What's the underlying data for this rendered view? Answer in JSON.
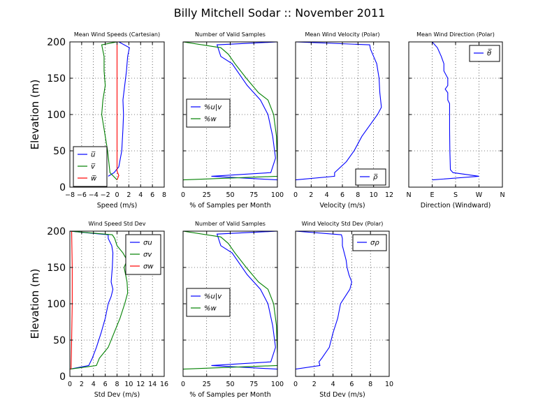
{
  "figure_title": "Billy Mitchell Sodar :: November 2011",
  "colors": {
    "blue": "#0000ff",
    "green": "#008000",
    "red": "#ff0000",
    "axis": "#000000"
  },
  "chart_data": [
    {
      "id": "p1",
      "type": "line",
      "title": "Mean Wind Speeds (Cartesian)",
      "xlabel": "Speed (m/s)",
      "ylabel": "Elevation (m)",
      "xlim": [
        -8,
        8
      ],
      "ylim": [
        0,
        200
      ],
      "xticks": [
        -8,
        -6,
        -4,
        -2,
        0,
        2,
        4,
        6,
        8
      ],
      "xticklabels": [
        "−8",
        "−6",
        "−4",
        "−2",
        "0",
        "2",
        "4",
        "6",
        "8"
      ],
      "yticks": [
        0,
        50,
        100,
        150,
        200
      ],
      "yticklabels": [
        "0",
        "50",
        "100",
        "150",
        "200"
      ],
      "grid": true,
      "legend": "lower-left",
      "series": [
        {
          "name": "u̅",
          "color": "#0000ff",
          "points": [
            [
              -1.5,
              15
            ],
            [
              -0.5,
              20
            ],
            [
              0.3,
              28
            ],
            [
              0.8,
              50
            ],
            [
              1.0,
              80
            ],
            [
              1.1,
              100
            ],
            [
              1.0,
              120
            ],
            [
              1.3,
              140
            ],
            [
              1.6,
              160
            ],
            [
              1.8,
              180
            ],
            [
              2.1,
              192
            ],
            [
              0.3,
              200
            ]
          ]
        },
        {
          "name": "v̅",
          "color": "#008000",
          "points": [
            [
              0.0,
              10
            ],
            [
              -0.6,
              15
            ],
            [
              -1.2,
              20
            ],
            [
              -1.6,
              50
            ],
            [
              -2.2,
              80
            ],
            [
              -2.6,
              100
            ],
            [
              -2.4,
              120
            ],
            [
              -2.0,
              140
            ],
            [
              -2.2,
              160
            ],
            [
              -2.2,
              180
            ],
            [
              -2.6,
              196
            ],
            [
              0.0,
              200
            ]
          ]
        },
        {
          "name": "w̅",
          "color": "#ff0000",
          "points": [
            [
              0.0,
              10
            ],
            [
              0.3,
              16
            ],
            [
              0.0,
              22
            ],
            [
              0.0,
              200
            ]
          ]
        }
      ]
    },
    {
      "id": "p2",
      "type": "line",
      "title": "Number of Valid Samples",
      "xlabel": "% of Samples per Month",
      "ylabel": "",
      "xlim": [
        0,
        100
      ],
      "ylim": [
        0,
        200
      ],
      "xticks": [
        0,
        25,
        50,
        75,
        100
      ],
      "xticklabels": [
        "0",
        "25",
        "50",
        "75",
        "100"
      ],
      "yticks": [
        0,
        50,
        100,
        150,
        200
      ],
      "yticklabels": [],
      "grid": true,
      "legend": "center-left",
      "series": [
        {
          "name": "%u|v",
          "color": "#0000ff",
          "points": [
            [
              100,
              10
            ],
            [
              30,
              15
            ],
            [
              93,
              20
            ],
            [
              98,
              40
            ],
            [
              95,
              70
            ],
            [
              90,
              100
            ],
            [
              82,
              120
            ],
            [
              68,
              140
            ],
            [
              52,
              170
            ],
            [
              40,
              180
            ],
            [
              36,
              196
            ],
            [
              100,
              200
            ]
          ]
        },
        {
          "name": "%w",
          "color": "#008000",
          "points": [
            [
              0,
              10
            ],
            [
              100,
              15
            ],
            [
              100,
              30
            ],
            [
              99,
              70
            ],
            [
              96,
              100
            ],
            [
              90,
              120
            ],
            [
              80,
              130
            ],
            [
              67,
              150
            ],
            [
              55,
              170
            ],
            [
              48,
              183
            ],
            [
              40,
              192
            ],
            [
              0,
              200
            ]
          ]
        }
      ]
    },
    {
      "id": "p3",
      "type": "line",
      "title": "Mean Wind Velocity (Polar)",
      "xlabel": "Velocity (m/s)",
      "ylabel": "",
      "xlim": [
        0,
        12
      ],
      "ylim": [
        0,
        200
      ],
      "xticks": [
        0,
        2,
        4,
        6,
        8,
        10,
        12
      ],
      "xticklabels": [
        "0",
        "2",
        "4",
        "6",
        "8",
        "10",
        "12"
      ],
      "yticks": [
        0,
        50,
        100,
        150,
        200
      ],
      "yticklabels": [],
      "grid": true,
      "legend": "lower-right",
      "series": [
        {
          "name": "ρ̅",
          "color": "#0000ff",
          "points": [
            [
              0.0,
              10
            ],
            [
              5.0,
              15
            ],
            [
              5.0,
              20
            ],
            [
              6.5,
              35
            ],
            [
              7.5,
              50
            ],
            [
              8.5,
              70
            ],
            [
              9.5,
              85
            ],
            [
              10.5,
              100
            ],
            [
              11.0,
              110
            ],
            [
              10.8,
              130
            ],
            [
              10.7,
              150
            ],
            [
              10.4,
              170
            ],
            [
              10.0,
              180
            ],
            [
              9.6,
              190
            ],
            [
              9.5,
              196
            ],
            [
              0.0,
              200
            ]
          ]
        }
      ]
    },
    {
      "id": "p4",
      "type": "line",
      "title": "Mean Wind Direction (Polar)",
      "xlabel": "Direction (Windward)",
      "ylabel": "",
      "xlim": [
        0,
        360
      ],
      "ylim": [
        0,
        200
      ],
      "xticks": [
        0,
        90,
        180,
        270,
        360
      ],
      "xticklabels": [
        "N",
        "E",
        "S",
        "W",
        "N"
      ],
      "yticks": [
        0,
        50,
        100,
        150,
        200
      ],
      "yticklabels": [],
      "grid": true,
      "legend": "top-right",
      "series": [
        {
          "name": "θ̅",
          "color": "#0000ff",
          "points": [
            [
              90,
              10
            ],
            [
              270,
              15
            ],
            [
              170,
              20
            ],
            [
              160,
              24
            ],
            [
              158,
              50
            ],
            [
              157,
              80
            ],
            [
              157,
              100
            ],
            [
              157,
              115
            ],
            [
              150,
              120
            ],
            [
              150,
              130
            ],
            [
              140,
              135
            ],
            [
              150,
              140
            ],
            [
              150,
              150
            ],
            [
              135,
              160
            ],
            [
              135,
              170
            ],
            [
              125,
              180
            ],
            [
              110,
              192
            ],
            [
              90,
              200
            ]
          ]
        }
      ]
    },
    {
      "id": "p5",
      "type": "line",
      "title": "Wind Speed Std Dev",
      "xlabel": "Std Dev (m/s)",
      "ylabel": "Elevation (m)",
      "xlim": [
        0,
        16
      ],
      "ylim": [
        0,
        200
      ],
      "xticks": [
        0,
        2,
        4,
        6,
        8,
        10,
        12,
        14,
        16
      ],
      "xticklabels": [
        "0",
        "2",
        "4",
        "6",
        "8",
        "10",
        "12",
        "14",
        "16"
      ],
      "yticks": [
        0,
        50,
        100,
        150,
        200
      ],
      "yticklabels": [
        "0",
        "50",
        "100",
        "150",
        "200"
      ],
      "grid": true,
      "legend": "top-right",
      "series": [
        {
          "name": "σu",
          "color": "#0000ff",
          "points": [
            [
              0,
              10
            ],
            [
              3.2,
              15
            ],
            [
              3.8,
              25
            ],
            [
              4.5,
              40
            ],
            [
              5.3,
              60
            ],
            [
              6.0,
              80
            ],
            [
              6.5,
              100
            ],
            [
              7.0,
              110
            ],
            [
              7.3,
              120
            ],
            [
              7.0,
              130
            ],
            [
              7.2,
              150
            ],
            [
              7.3,
              170
            ],
            [
              7.1,
              180
            ],
            [
              6.5,
              190
            ],
            [
              6.5,
              195
            ],
            [
              0,
              200
            ]
          ]
        },
        {
          "name": "σv",
          "color": "#008000",
          "points": [
            [
              0,
              10
            ],
            [
              4.5,
              15
            ],
            [
              5.0,
              25
            ],
            [
              6.5,
              40
            ],
            [
              7.5,
              60
            ],
            [
              8.5,
              80
            ],
            [
              9.3,
              100
            ],
            [
              9.8,
              115
            ],
            [
              9.7,
              130
            ],
            [
              9.2,
              150
            ],
            [
              9.7,
              160
            ],
            [
              9.0,
              170
            ],
            [
              8.0,
              180
            ],
            [
              7.6,
              190
            ],
            [
              7.2,
              195
            ],
            [
              0,
              200
            ]
          ]
        },
        {
          "name": "σw",
          "color": "#ff0000",
          "points": [
            [
              0.2,
              10
            ],
            [
              0.3,
              50
            ],
            [
              0.4,
              100
            ],
            [
              0.4,
              150
            ],
            [
              0.3,
              200
            ]
          ]
        }
      ]
    },
    {
      "id": "p6",
      "type": "line",
      "title": "Number of Valid Samples",
      "xlabel": "% of Samples per Month",
      "ylabel": "",
      "xlim": [
        0,
        100
      ],
      "ylim": [
        0,
        200
      ],
      "xticks": [
        0,
        25,
        50,
        75,
        100
      ],
      "xticklabels": [
        "0",
        "25",
        "50",
        "75",
        "100"
      ],
      "yticks": [
        0,
        50,
        100,
        150,
        200
      ],
      "yticklabels": [],
      "grid": true,
      "legend": "center-left",
      "series": [
        {
          "name": "%u|v",
          "color": "#0000ff",
          "points": [
            [
              100,
              10
            ],
            [
              30,
              15
            ],
            [
              93,
              20
            ],
            [
              98,
              40
            ],
            [
              95,
              70
            ],
            [
              90,
              100
            ],
            [
              82,
              120
            ],
            [
              68,
              140
            ],
            [
              52,
              170
            ],
            [
              40,
              180
            ],
            [
              36,
              196
            ],
            [
              100,
              200
            ]
          ]
        },
        {
          "name": "%w",
          "color": "#008000",
          "points": [
            [
              0,
              10
            ],
            [
              100,
              15
            ],
            [
              100,
              30
            ],
            [
              99,
              70
            ],
            [
              96,
              100
            ],
            [
              90,
              120
            ],
            [
              80,
              130
            ],
            [
              67,
              150
            ],
            [
              55,
              170
            ],
            [
              48,
              183
            ],
            [
              40,
              192
            ],
            [
              0,
              200
            ]
          ]
        }
      ]
    },
    {
      "id": "p7",
      "type": "line",
      "title": "Wind Velocity Std Dev (Polar)",
      "xlabel": "Std Dev (m/s)",
      "ylabel": "",
      "xlim": [
        0,
        10
      ],
      "ylim": [
        0,
        200
      ],
      "xticks": [
        0,
        2,
        4,
        6,
        8,
        10
      ],
      "xticklabels": [
        "0",
        "2",
        "4",
        "6",
        "8",
        "10"
      ],
      "yticks": [
        0,
        50,
        100,
        150,
        200
      ],
      "yticklabels": [],
      "grid": true,
      "legend": "top-right",
      "series": [
        {
          "name": "σρ",
          "color": "#0000ff",
          "points": [
            [
              0,
              10
            ],
            [
              2.6,
              15
            ],
            [
              2.5,
              20
            ],
            [
              2.8,
              25
            ],
            [
              3.6,
              40
            ],
            [
              4.0,
              60
            ],
            [
              4.5,
              80
            ],
            [
              4.8,
              100
            ],
            [
              5.3,
              110
            ],
            [
              5.8,
              120
            ],
            [
              6.0,
              130
            ],
            [
              5.7,
              140
            ],
            [
              5.5,
              150
            ],
            [
              5.4,
              160
            ],
            [
              5.2,
              170
            ],
            [
              5.0,
              180
            ],
            [
              5.0,
              190
            ],
            [
              4.9,
              195
            ],
            [
              0,
              200
            ]
          ]
        }
      ]
    }
  ]
}
